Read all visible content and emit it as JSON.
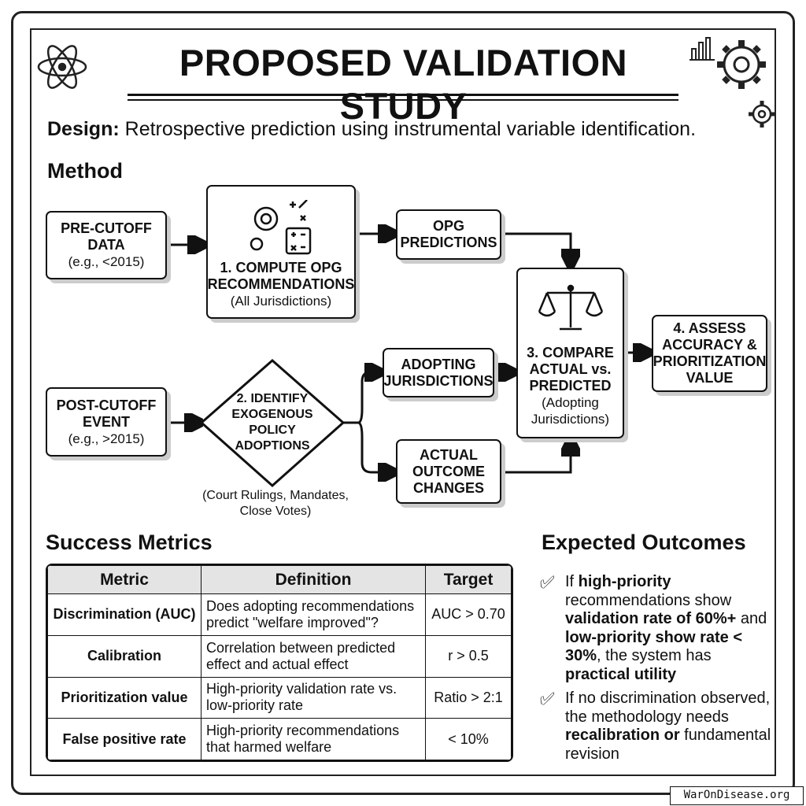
{
  "title": "PROPOSED VALIDATION STUDY",
  "design": {
    "label": "Design:",
    "text": "Retrospective prediction using instrumental variable identification."
  },
  "method": {
    "heading": "Method",
    "pre": {
      "l1": "PRE-CUTOFF",
      "l2": "DATA",
      "l3": "(e.g., <2015)"
    },
    "compute": {
      "l1": "1. COMPUTE OPG",
      "l2": "RECOMMENDATIONS",
      "l3": "(All Jurisdictions)"
    },
    "opg": {
      "l1": "OPG",
      "l2": "PREDICTIONS"
    },
    "compare": {
      "l1": "3. COMPARE",
      "l2": "ACTUAL vs.",
      "l3": "PREDICTED",
      "l4": "(Adopting",
      "l5": "Jurisdictions)"
    },
    "assess": {
      "l1": "4. ASSESS",
      "l2": "ACCURACY &",
      "l3": "PRIORITIZATION",
      "l4": "VALUE"
    },
    "post": {
      "l1": "POST-CUTOFF",
      "l2": "EVENT",
      "l3": "(e.g., >2015)"
    },
    "identify": {
      "l1": "2. IDENTIFY",
      "l2": "EXOGENOUS",
      "l3": "POLICY",
      "l4": "ADOPTIONS"
    },
    "identify_caption": {
      "l1": "(Court Rulings, Mandates,",
      "l2": "Close Votes)"
    },
    "adopting": {
      "l1": "ADOPTING",
      "l2": "JURISDICTIONS"
    },
    "actual": {
      "l1": "ACTUAL",
      "l2": "OUTCOME",
      "l3": "CHANGES"
    }
  },
  "metrics": {
    "heading": "Success Metrics",
    "columns": [
      "Metric",
      "Definition",
      "Target"
    ],
    "rows": [
      {
        "metric": "Discrimination (AUC)",
        "definition": "Does adopting recommendations predict \"welfare improved\"?",
        "target": "AUC > 0.70"
      },
      {
        "metric": "Calibration",
        "definition": "Correlation between predicted effect and actual effect",
        "target": "r > 0.5"
      },
      {
        "metric": "Prioritization value",
        "definition": "High-priority validation rate vs. low-priority rate",
        "target": "Ratio > 2:1"
      },
      {
        "metric": "False positive rate",
        "definition": "High-priority recommendations that harmed welfare",
        "target": "< 10%"
      }
    ]
  },
  "outcomes": {
    "heading": "Expected Outcomes",
    "item1": {
      "a": "If ",
      "b": "high-priority",
      "c": " recommendations show ",
      "d": "validation rate of 60%+",
      "e": " and ",
      "f": "low-priority show rate < 30%",
      "g": ", the system has ",
      "h": "practical utility"
    },
    "item2": {
      "a": "If no discrimination observed, the methodology needs ",
      "b": "recalibration or",
      "c": " fundamental revision"
    }
  },
  "watermark": "WarOnDisease.org",
  "icons": [
    "atom-icon",
    "gear-icon",
    "bar-chart-icon",
    "scales-icon",
    "calculator-icon",
    "check-circle-icon"
  ]
}
